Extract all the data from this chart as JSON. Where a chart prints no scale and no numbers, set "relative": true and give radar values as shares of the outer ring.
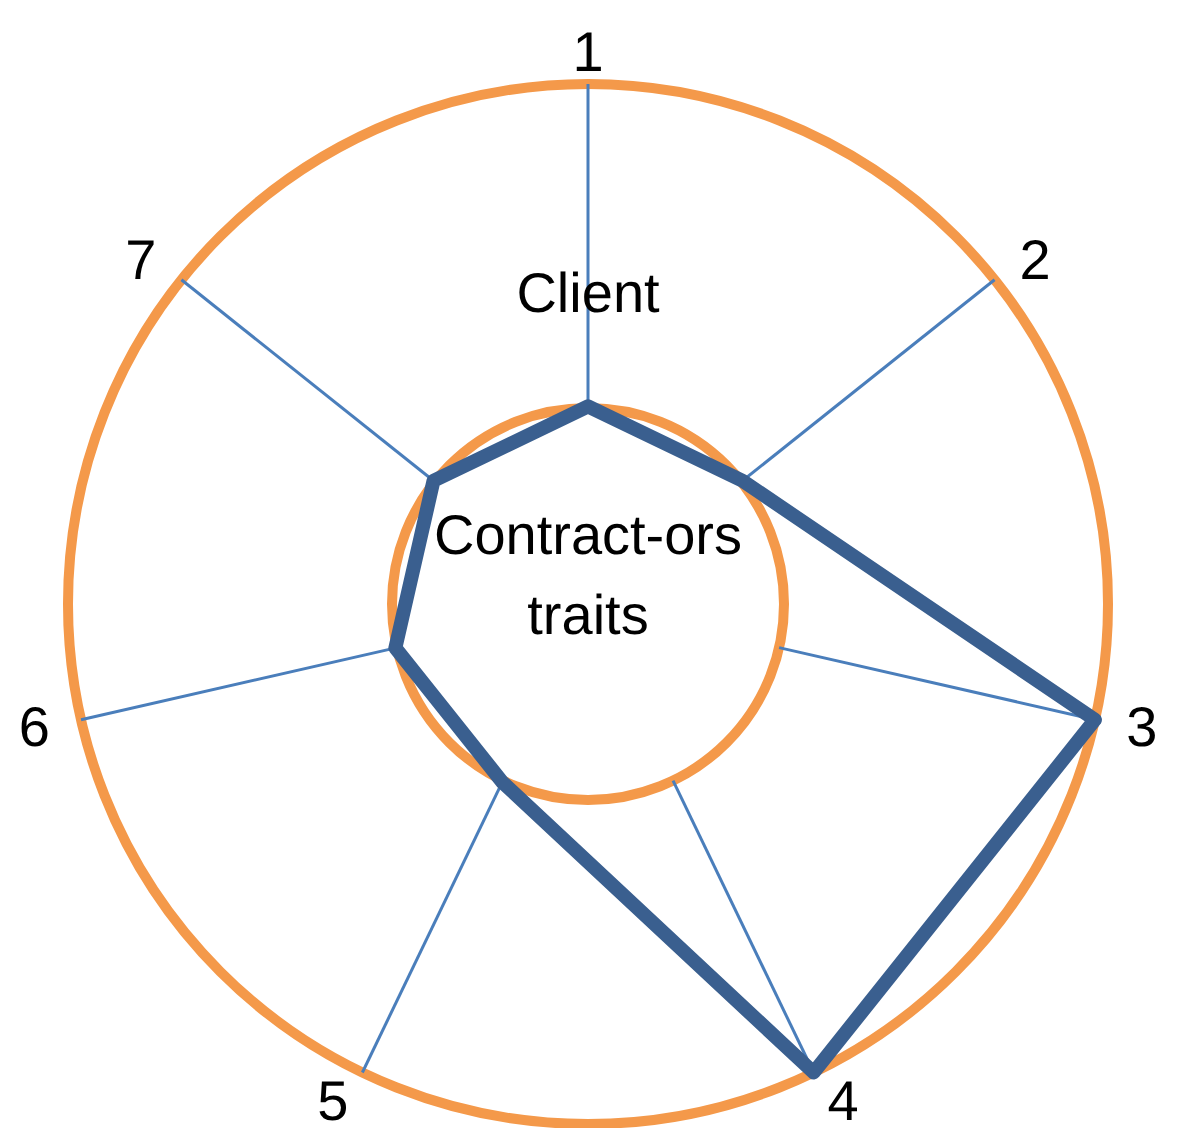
{
  "chart_data": {
    "type": "radar",
    "relative": true,
    "categories": [
      "1",
      "2",
      "3",
      "4",
      "5",
      "6",
      "7"
    ],
    "values": [
      0.38,
      0.38,
      1,
      1,
      0.38,
      0.38,
      0.38
    ],
    "color": "#3a5f8f",
    "grid": true,
    "marker": "none",
    "line_style": "solid",
    "annotations": [
      "Client",
      "Contract-ors traits"
    ]
  }
}
